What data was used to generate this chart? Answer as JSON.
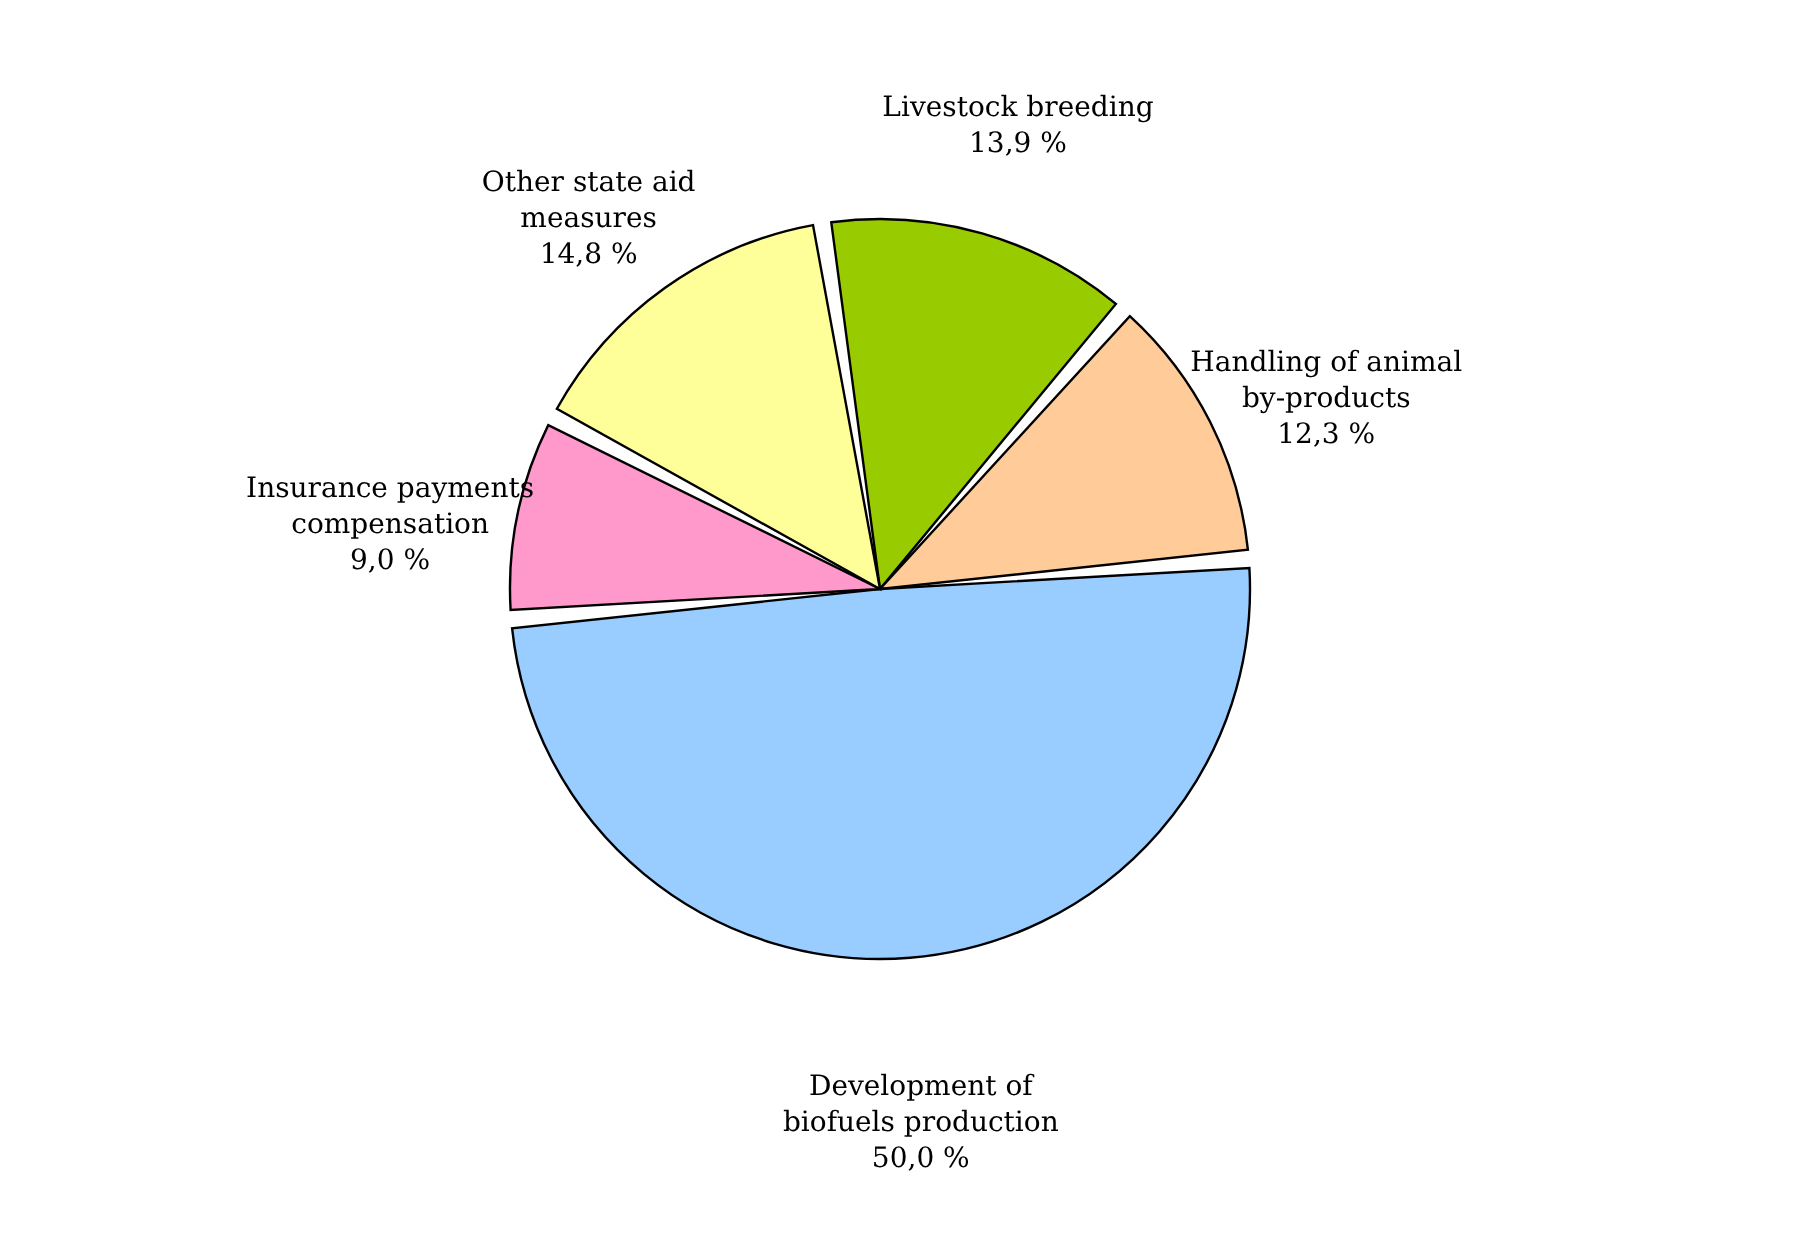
{
  "chart_data": {
    "type": "pie",
    "categories": [
      "Livestock breeding",
      "Handling of animal\nby-products",
      "Development of\nbiofuels production",
      "Insurance payments\ncompensation",
      "Other state aid\nmeasures"
    ],
    "values": [
      13.9,
      12.3,
      50.0,
      9.0,
      14.8
    ],
    "value_labels": [
      "13,9 %",
      "12,3 %",
      "50,0 %",
      "9,0 %",
      "14,8 %"
    ],
    "colors": [
      "#99cc00",
      "#ffcc99",
      "#99ccff",
      "#ff99cc",
      "#ffff99"
    ],
    "legend": false
  }
}
